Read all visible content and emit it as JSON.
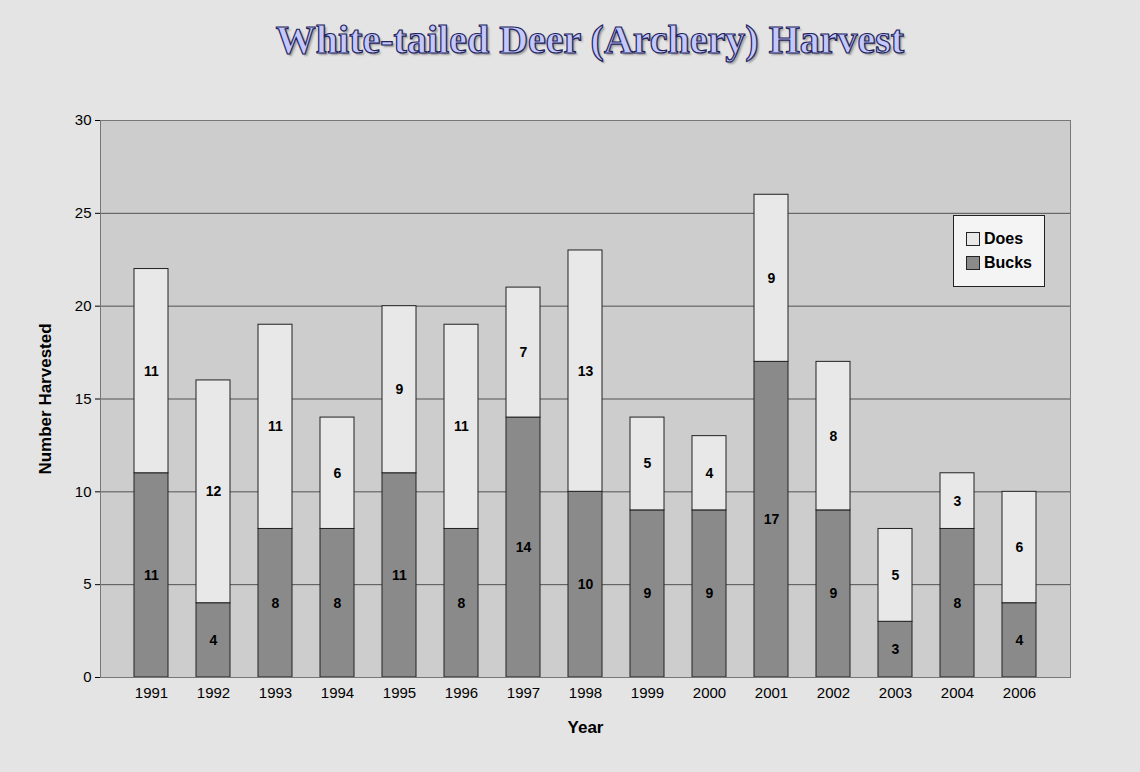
{
  "chart_data": {
    "type": "bar",
    "title": "White-tailed Deer (Archery) Harvest",
    "x_label": "Year",
    "y_label": "Number Harvested",
    "categories": [
      "1991",
      "1992",
      "1993",
      "1994",
      "1995",
      "1996",
      "1997",
      "1998",
      "1999",
      "2000",
      "2001",
      "2002",
      "2003",
      "2004",
      "2006"
    ],
    "series": [
      {
        "name": "Bucks",
        "color": "#8a8a8a",
        "values": [
          11,
          4,
          8,
          8,
          11,
          8,
          14,
          10,
          9,
          9,
          17,
          9,
          3,
          8,
          4
        ]
      },
      {
        "name": "Does",
        "color": "#e8e8e8",
        "values": [
          11,
          12,
          11,
          6,
          9,
          11,
          7,
          13,
          5,
          4,
          9,
          8,
          5,
          3,
          6
        ]
      }
    ],
    "ylim": [
      0,
      30
    ],
    "yticks": [
      0,
      5,
      10,
      15,
      20,
      25,
      30
    ],
    "stacked": true,
    "data_labels": true,
    "grid": true,
    "legend": "top-right"
  }
}
